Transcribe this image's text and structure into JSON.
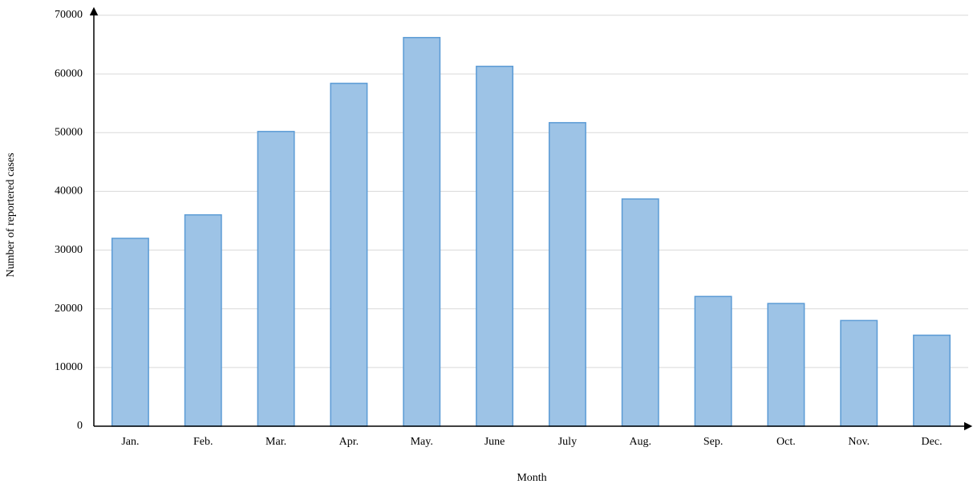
{
  "chart_data": {
    "type": "bar",
    "x_label": "Month",
    "y_label": "Number of reportered cases",
    "categories": [
      "Jan.",
      "Feb.",
      "Mar.",
      "Apr.",
      "May.",
      "June",
      "July",
      "Aug.",
      "Sep.",
      "Oct.",
      "Nov.",
      "Dec."
    ],
    "values": [
      32000,
      36000,
      50200,
      58400,
      66200,
      61300,
      51700,
      38700,
      22100,
      20900,
      18000,
      15500
    ],
    "color": "#9dc3e6",
    "edge_color": "#5b9bd5",
    "ylim": [
      0,
      70000
    ],
    "yticks": [
      0,
      10000,
      20000,
      30000,
      40000,
      50000,
      60000,
      70000
    ],
    "grid": true
  }
}
